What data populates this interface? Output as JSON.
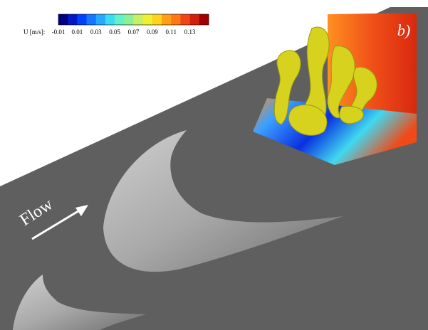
{
  "colorbar": {
    "label": "U [m/s]:",
    "ticks": [
      -0.01,
      0.01,
      0.03,
      0.05,
      0.07,
      0.09,
      0.11,
      0.13
    ],
    "colors": [
      "#000080",
      "#0018c8",
      "#0040ff",
      "#1478ff",
      "#28a8ff",
      "#3cdcf0",
      "#64f0c8",
      "#8cf096",
      "#c8f064",
      "#f0f032",
      "#ffd21e",
      "#ffa014",
      "#ff7814",
      "#f04614",
      "#d21e0a",
      "#a00000"
    ]
  },
  "panel_label": "b)",
  "annotation": "Flow"
}
